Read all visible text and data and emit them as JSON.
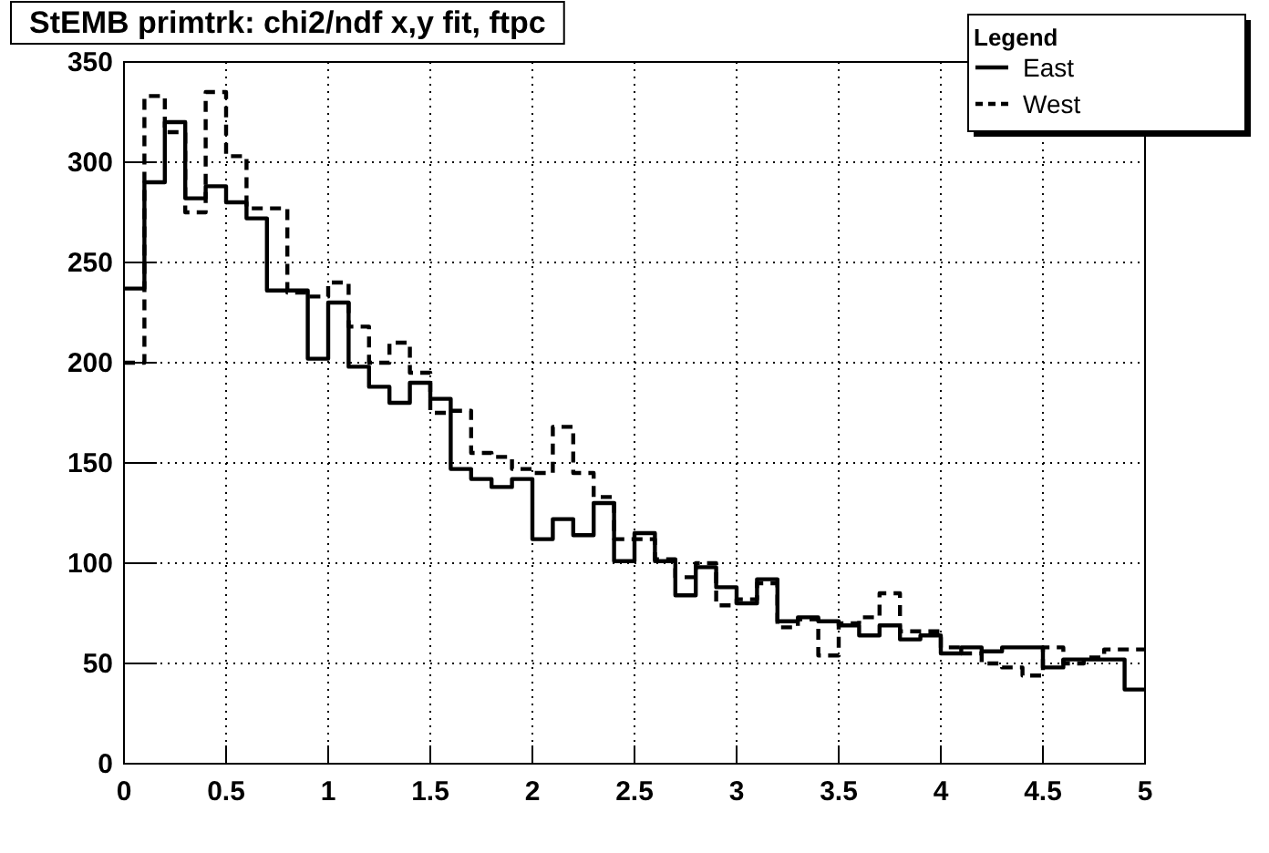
{
  "chart_data": {
    "type": "histogram",
    "title": "StEMB primtrk: chi2/ndf x,y fit, ftpc",
    "legend_title": "Legend",
    "bins": [
      0,
      0.1,
      0.2,
      0.3,
      0.4,
      0.5,
      0.6,
      0.7,
      0.8,
      0.9,
      1,
      1.1,
      1.2,
      1.3,
      1.4,
      1.5,
      1.6,
      1.7,
      1.8,
      1.9,
      2,
      2.1,
      2.2,
      2.3,
      2.4,
      2.5,
      2.6,
      2.7,
      2.8,
      2.9,
      3,
      3.1,
      3.2,
      3.3,
      3.4,
      3.5,
      3.6,
      3.7,
      3.8,
      3.9,
      4,
      4.1,
      4.2,
      4.3,
      4.4,
      4.5,
      4.6,
      4.7,
      4.8,
      4.9,
      5
    ],
    "series": [
      {
        "name": "East",
        "color": "#000000",
        "line_style": "solid",
        "values": [
          237,
          290,
          320,
          282,
          288,
          280,
          272,
          236,
          236,
          202,
          230,
          198,
          188,
          180,
          190,
          182,
          147,
          142,
          138,
          142,
          112,
          122,
          114,
          130,
          101,
          115,
          101,
          84,
          98,
          88,
          80,
          92,
          71,
          73,
          71,
          69,
          64,
          69,
          62,
          64,
          55,
          58,
          56,
          58,
          58,
          48,
          52,
          52,
          52,
          37
        ]
      },
      {
        "name": "West",
        "color": "#000000",
        "line_style": "dashed",
        "values": [
          200,
          333,
          315,
          275,
          335,
          303,
          277,
          277,
          235,
          233,
          240,
          218,
          200,
          210,
          195,
          175,
          176,
          155,
          153,
          147,
          145,
          168,
          145,
          133,
          112,
          112,
          102,
          93,
          100,
          79,
          82,
          90,
          68,
          72,
          54,
          70,
          73,
          85,
          66,
          66,
          58,
          55,
          50,
          48,
          44,
          58,
          50,
          53,
          57,
          57
        ]
      }
    ],
    "xlim": [
      0,
      5
    ],
    "xticks": [
      0,
      0.5,
      1,
      1.5,
      2,
      2.5,
      3,
      3.5,
      4,
      4.5,
      5
    ],
    "ylim": [
      0,
      350
    ],
    "yticks": [
      0,
      50,
      100,
      150,
      200,
      250,
      300,
      350
    ],
    "grid": true,
    "legend": "top right"
  }
}
